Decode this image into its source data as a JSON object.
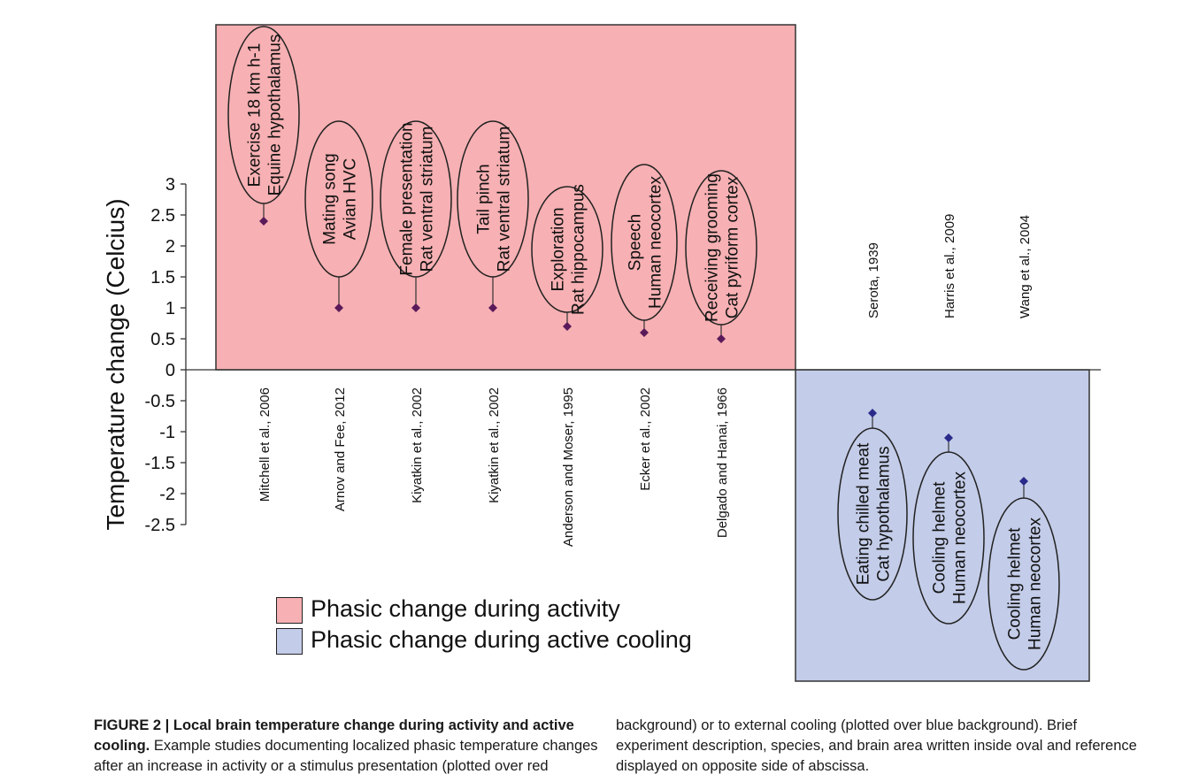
{
  "chart_data": {
    "type": "scatter",
    "ylabel": "Temperature change (Celcius)",
    "ylim": [
      -2.5,
      3
    ],
    "yticks": [
      "3",
      "2.5",
      "2",
      "1.5",
      "1",
      "0.5",
      "0",
      "-0.5",
      "-1",
      "-1.5",
      "-2",
      "-2.5"
    ],
    "grid": false,
    "legend_position": "bottom-left",
    "series": [
      {
        "name": "Phasic change during activity",
        "background_color": "#f7b0b3",
        "marker_color": "#5a1a5a",
        "points": [
          {
            "y": 2.4,
            "label_lines": [
              "Exercise 18 km h-1",
              "Equine hypothalamus"
            ],
            "reference": "Mitchell et al., 2006"
          },
          {
            "y": 1.0,
            "label_lines": [
              "Mating song",
              "Avian HVC"
            ],
            "reference": "Arnov and Fee, 2012"
          },
          {
            "y": 1.0,
            "label_lines": [
              "Female presentation",
              "Rat ventral striatum"
            ],
            "reference": "Kiyatkin et al., 2002"
          },
          {
            "y": 1.0,
            "label_lines": [
              "Tail pinch",
              "Rat ventral striatum"
            ],
            "reference": "Kiyatkin et al., 2002"
          },
          {
            "y": 0.7,
            "label_lines": [
              "Exploration",
              "Rat hippocampus"
            ],
            "reference": "Anderson and Moser, 1995"
          },
          {
            "y": 0.6,
            "label_lines": [
              "Speech",
              "Human neocortex"
            ],
            "reference": "Ecker et al., 2002"
          },
          {
            "y": 0.5,
            "label_lines": [
              "Receiving grooming",
              "Cat pyriform cortex"
            ],
            "reference": "Delgado and Hanai, 1966"
          }
        ]
      },
      {
        "name": "Phasic change during active cooling",
        "background_color": "#c3cce8",
        "marker_color": "#2a2a8a",
        "points": [
          {
            "y": -0.7,
            "label_lines": [
              "Eating chilled meat",
              "Cat hypothalamus"
            ],
            "reference": "Serota, 1939"
          },
          {
            "y": -1.1,
            "label_lines": [
              "Cooling helmet",
              "Human neocortex"
            ],
            "reference": "Harris et al., 2009"
          },
          {
            "y": -1.8,
            "label_lines": [
              "Cooling helmet",
              "Human neocortex"
            ],
            "reference": "Wang et al., 2004"
          }
        ]
      }
    ]
  },
  "caption": {
    "title": "FIGURE 2 | Local brain temperature change during activity and active cooling.",
    "body_left": "Example studies documenting localized phasic temperature changes after an increase in activity or a stimulus presentation (plotted over red",
    "body_right": "background) or to external cooling (plotted over blue background). Brief experiment description, species, and brain area written inside oval and reference displayed on opposite side of abscissa."
  }
}
